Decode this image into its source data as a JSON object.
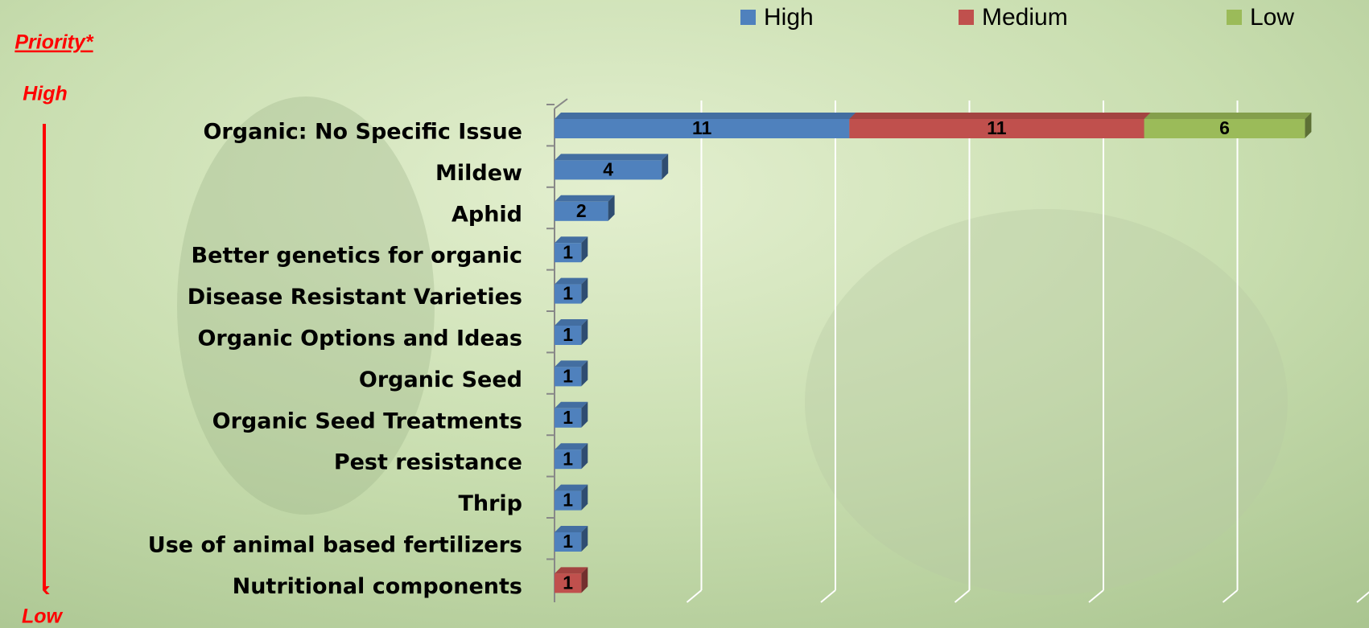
{
  "chart_data": {
    "type": "stacked-bar",
    "orientation": "horizontal",
    "annotations": [
      "Priority*",
      "High",
      "Low"
    ],
    "categories": [
      "Organic: No Specific Issue",
      "Mildew",
      "Aphid",
      "Better genetics for organic",
      "Disease Resistant Varieties",
      "Organic Options and Ideas",
      "Organic Seed",
      "Organic Seed Treatments",
      "Pest resistance",
      "Thrip",
      "Use of animal based fertilizers",
      "Nutritional components"
    ],
    "series": [
      {
        "name": "High",
        "color": "#4f81bd",
        "values": [
          11,
          4,
          2,
          1,
          1,
          1,
          1,
          1,
          1,
          1,
          1,
          null
        ]
      },
      {
        "name": "Medium",
        "color": "#c0504d",
        "values": [
          11,
          null,
          null,
          null,
          null,
          null,
          null,
          null,
          null,
          null,
          null,
          1
        ]
      },
      {
        "name": "Low",
        "color": "#9bbb59",
        "values": [
          6,
          null,
          null,
          null,
          null,
          null,
          null,
          null,
          null,
          null,
          null,
          null
        ]
      }
    ],
    "xlim": [
      0,
      30
    ],
    "xticks": [
      0,
      5,
      10,
      15,
      20,
      25,
      30
    ],
    "grid": true,
    "legend": "top"
  }
}
